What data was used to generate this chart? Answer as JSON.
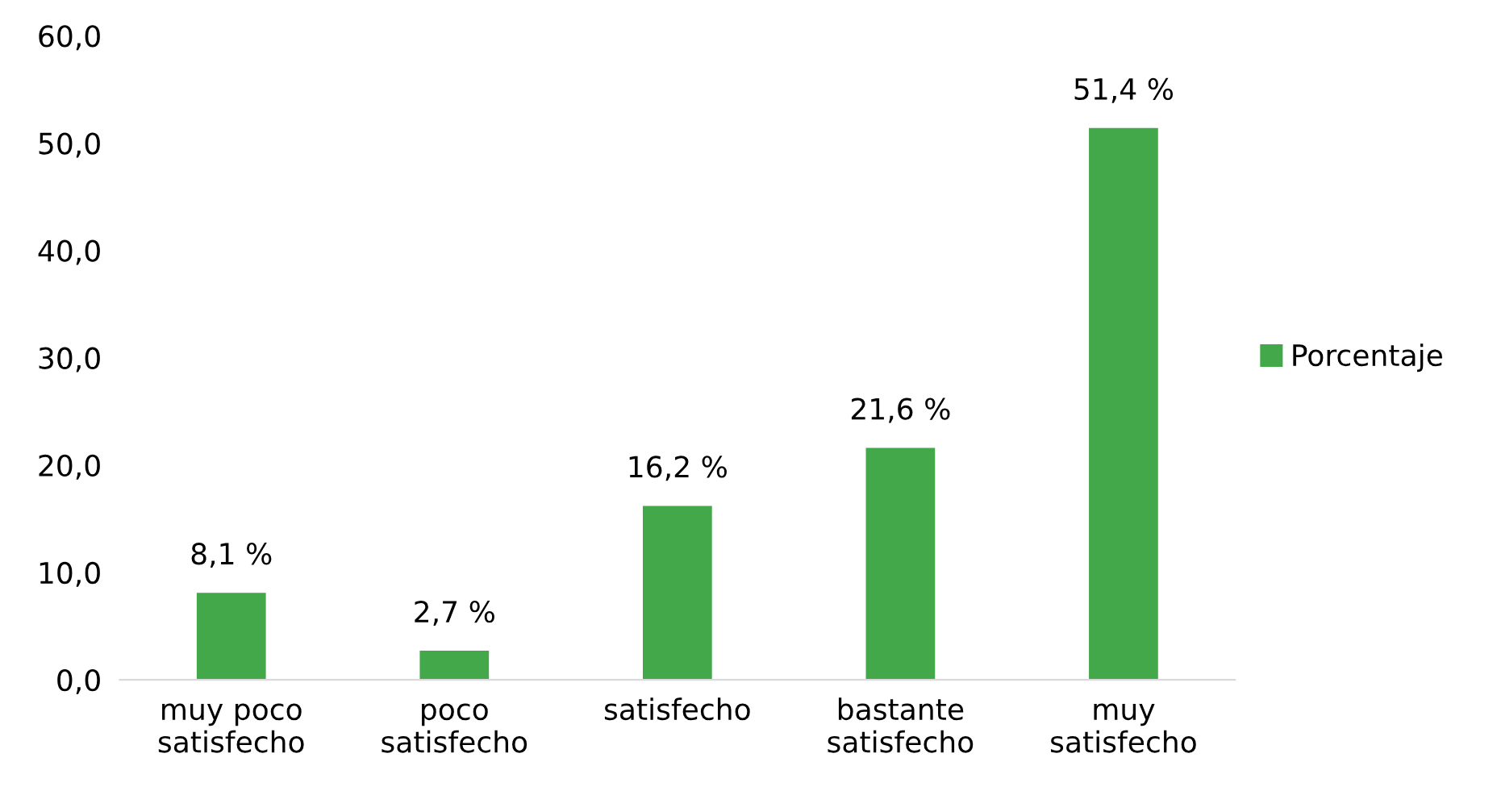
{
  "chart_data": {
    "type": "bar",
    "categories": [
      "muy poco\nsatisfecho",
      "poco\nsatisfecho",
      "satisfecho",
      "bastante\nsatisfecho",
      "muy\nsatisfecho"
    ],
    "series": [
      {
        "name": "Porcentaje",
        "color": "#43a84a",
        "values": [
          8.1,
          2.7,
          16.2,
          21.6,
          51.4
        ],
        "value_labels": [
          "8,1 %",
          "2,7 %",
          "16,2 %",
          "21,6 %",
          "51,4 %"
        ]
      }
    ],
    "ylim": [
      0,
      60
    ],
    "yticks": [
      {
        "value": 0,
        "label": "0,0"
      },
      {
        "value": 10,
        "label": "10,0"
      },
      {
        "value": 20,
        "label": "20,0"
      },
      {
        "value": 30,
        "label": "30,0"
      },
      {
        "value": 40,
        "label": "40,0"
      },
      {
        "value": 50,
        "label": "50,0"
      },
      {
        "value": 60,
        "label": "60,0"
      }
    ],
    "grid": false,
    "legend": "right"
  }
}
